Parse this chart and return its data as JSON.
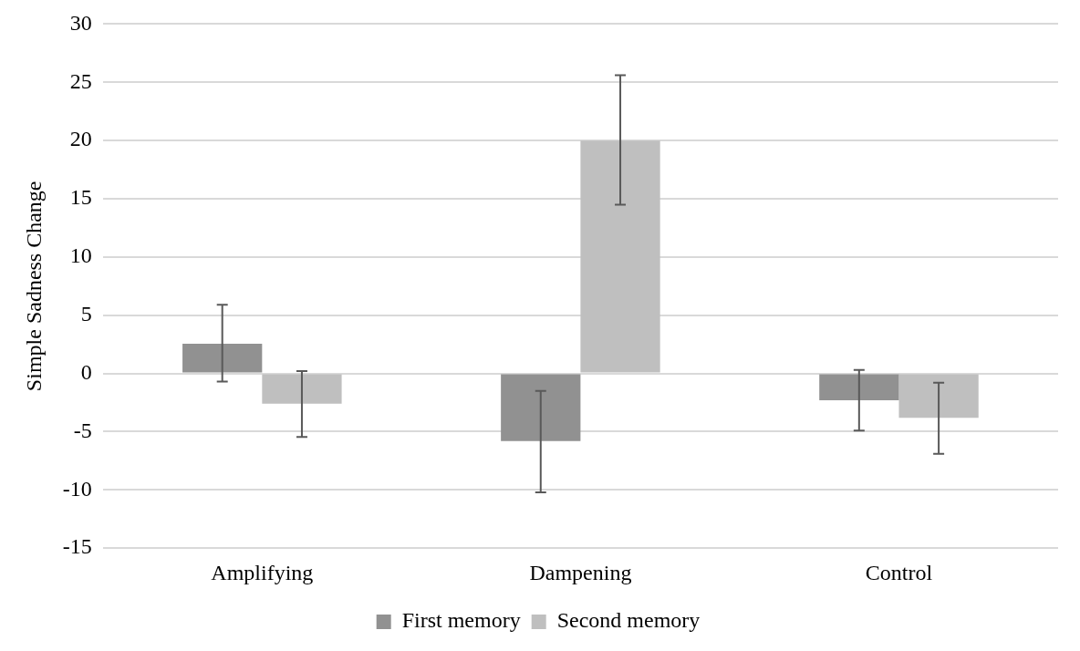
{
  "chart_data": {
    "type": "bar",
    "ylabel": "Simple Sadness Change",
    "categories": [
      "Amplifying",
      "Dampening",
      "Control"
    ],
    "series": [
      {
        "name": "First memory",
        "color": "#919191",
        "values": [
          2.55,
          -5.8,
          -2.3
        ],
        "errors": [
          [
            -0.7,
            5.9
          ],
          [
            -10.2,
            -1.5
          ],
          [
            -4.9,
            0.3
          ]
        ]
      },
      {
        "name": "Second memory",
        "color": "#bfbfbf",
        "values": [
          -2.6,
          20,
          -3.8
        ],
        "errors": [
          [
            -5.45,
            0.2
          ],
          [
            14.5,
            25.6
          ],
          [
            -6.9,
            -0.8
          ]
        ]
      }
    ],
    "ylim": [
      -15,
      30
    ],
    "yticks": [
      -15,
      -10,
      -5,
      0,
      5,
      10,
      15,
      20,
      25,
      30
    ],
    "grid": "y",
    "legend": "bottom"
  }
}
